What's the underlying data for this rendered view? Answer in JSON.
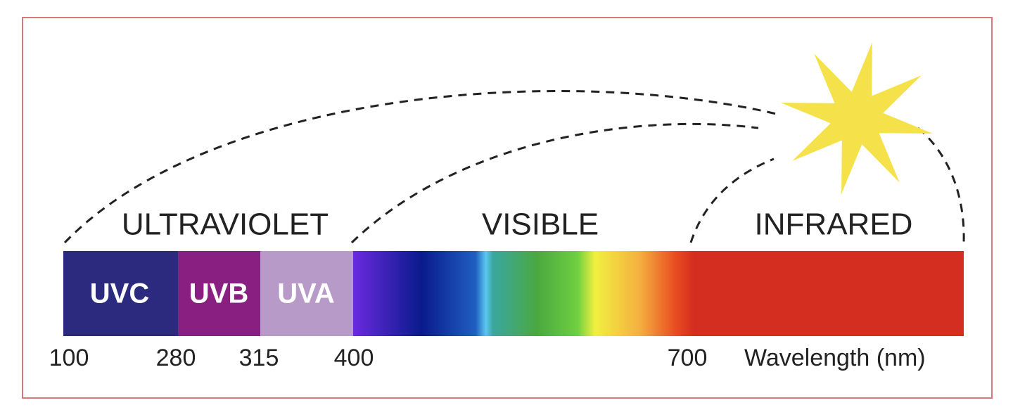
{
  "regions": [
    "ULTRAVIOLET",
    "VISIBLE",
    "INFRARED"
  ],
  "bands": [
    "UVC",
    "UVB",
    "UVA"
  ],
  "ticks": [
    100,
    280,
    315,
    400,
    700
  ],
  "axis_label": "Wavelength (nm)"
}
